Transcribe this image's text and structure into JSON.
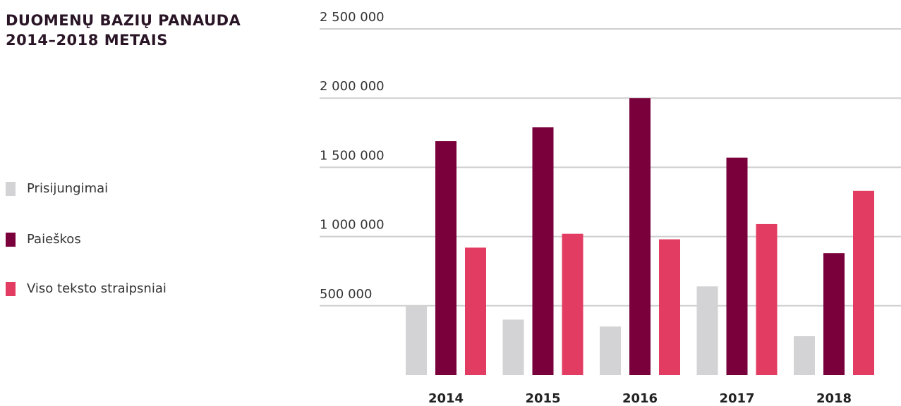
{
  "chart_data": {
    "type": "bar",
    "title": [
      "DUOMENŲ BAZIŲ PANAUDA",
      "2014–2018 METAIS"
    ],
    "categories": [
      "2014",
      "2015",
      "2016",
      "2017",
      "2018"
    ],
    "series": [
      {
        "name": "Prisijungimai",
        "color": "#d3d3d5",
        "values": [
          500000,
          400000,
          350000,
          640000,
          280000
        ]
      },
      {
        "name": "Paieškos",
        "color": "#7a003c",
        "values": [
          1690000,
          1790000,
          2000000,
          1570000,
          880000
        ]
      },
      {
        "name": "Viso teksto straipsniai",
        "color": "#e33c62",
        "values": [
          920000,
          1020000,
          980000,
          1090000,
          1330000
        ]
      }
    ],
    "ylim": [
      0,
      2500000
    ],
    "yticks": [
      {
        "value": 500000,
        "label": "500 000"
      },
      {
        "value": 1000000,
        "label": "1 000 000"
      },
      {
        "value": 1500000,
        "label": "1 500 000"
      },
      {
        "value": 2000000,
        "label": "2 000 000"
      },
      {
        "value": 2500000,
        "label": "2 500 000"
      }
    ],
    "grid": true,
    "legend": "left"
  }
}
